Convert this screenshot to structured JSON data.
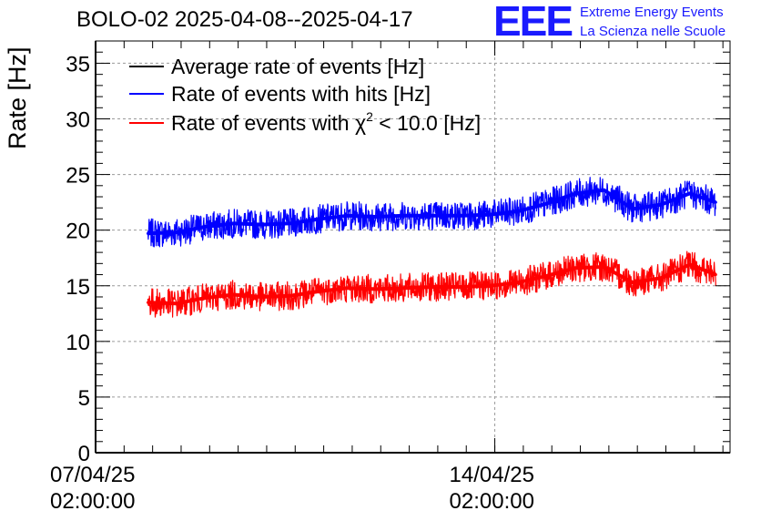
{
  "chart_data": {
    "type": "line",
    "title": "BOLO-02 2025-04-08--2025-04-17",
    "ylabel": "Rate [Hz]",
    "xlabel": "",
    "ylim": [
      0,
      37
    ],
    "yticks": [
      0,
      5,
      10,
      15,
      20,
      25,
      30,
      35
    ],
    "grid": true,
    "legend_position": "top-left",
    "x_axis": {
      "type": "datetime",
      "range": [
        "2025-04-07 02:00:00",
        "2025-04-18 05:00:00"
      ],
      "major_ticks": [
        {
          "value": "2025-04-07 02:00:00",
          "line1": "07/04/25",
          "line2": "02:00:00"
        },
        {
          "value": "2025-04-14 02:00:00",
          "line1": "14/04/25",
          "line2": "02:00:00"
        }
      ]
    },
    "series": [
      {
        "name": "Average rate of events [Hz]",
        "color": "#000000",
        "x": [],
        "y": []
      },
      {
        "name": "Rate of events with hits [Hz]",
        "color": "#0000ff",
        "x": [
          "2025-04-08 00:00",
          "2025-04-08 12:00",
          "2025-04-09 00:00",
          "2025-04-09 12:00",
          "2025-04-10 00:00",
          "2025-04-10 12:00",
          "2025-04-11 00:00",
          "2025-04-11 12:00",
          "2025-04-12 00:00",
          "2025-04-12 12:00",
          "2025-04-13 00:00",
          "2025-04-13 12:00",
          "2025-04-14 00:00",
          "2025-04-14 12:00",
          "2025-04-15 00:00",
          "2025-04-15 12:00",
          "2025-04-16 00:00",
          "2025-04-16 12:00",
          "2025-04-17 00:00",
          "2025-04-17 12:00",
          "2025-04-17 23:00"
        ],
        "y": [
          19.7,
          19.8,
          20.3,
          20.6,
          20.5,
          20.6,
          21.0,
          21.3,
          21.2,
          21.3,
          21.3,
          21.3,
          21.4,
          21.7,
          22.4,
          23.3,
          23.6,
          21.9,
          22.3,
          23.3,
          22.5
        ]
      },
      {
        "name": "Rate of events with χ2 < 10.0 [Hz]",
        "color": "#ff0000",
        "x": [
          "2025-04-08 00:00",
          "2025-04-08 12:00",
          "2025-04-09 00:00",
          "2025-04-09 12:00",
          "2025-04-10 00:00",
          "2025-04-10 12:00",
          "2025-04-11 00:00",
          "2025-04-11 12:00",
          "2025-04-12 00:00",
          "2025-04-12 12:00",
          "2025-04-13 00:00",
          "2025-04-13 12:00",
          "2025-04-14 00:00",
          "2025-04-14 12:00",
          "2025-04-15 00:00",
          "2025-04-15 12:00",
          "2025-04-16 00:00",
          "2025-04-16 12:00",
          "2025-04-17 00:00",
          "2025-04-17 12:00",
          "2025-04-17 23:00"
        ],
        "y": [
          13.5,
          13.4,
          13.9,
          14.2,
          14.0,
          14.1,
          14.5,
          14.8,
          14.7,
          14.8,
          14.9,
          14.9,
          15.0,
          15.3,
          15.9,
          16.6,
          16.7,
          15.3,
          15.7,
          16.9,
          16.0
        ]
      }
    ]
  },
  "page": {
    "title": "BOLO-02 2025-04-08--2025-04-17",
    "ylabel": "Rate [Hz]",
    "logo": {
      "mark": "EEE",
      "line1": "Extreme Energy Events",
      "line2": "La Scienza nelle Scuole"
    },
    "legend": {
      "average": "Average rate of events [Hz]",
      "hits": "Rate of events with hits [Hz]",
      "chi_prefix": "Rate of events with χ",
      "chi_sup": "2",
      "chi_suffix": " < 10.0 [Hz]"
    }
  }
}
